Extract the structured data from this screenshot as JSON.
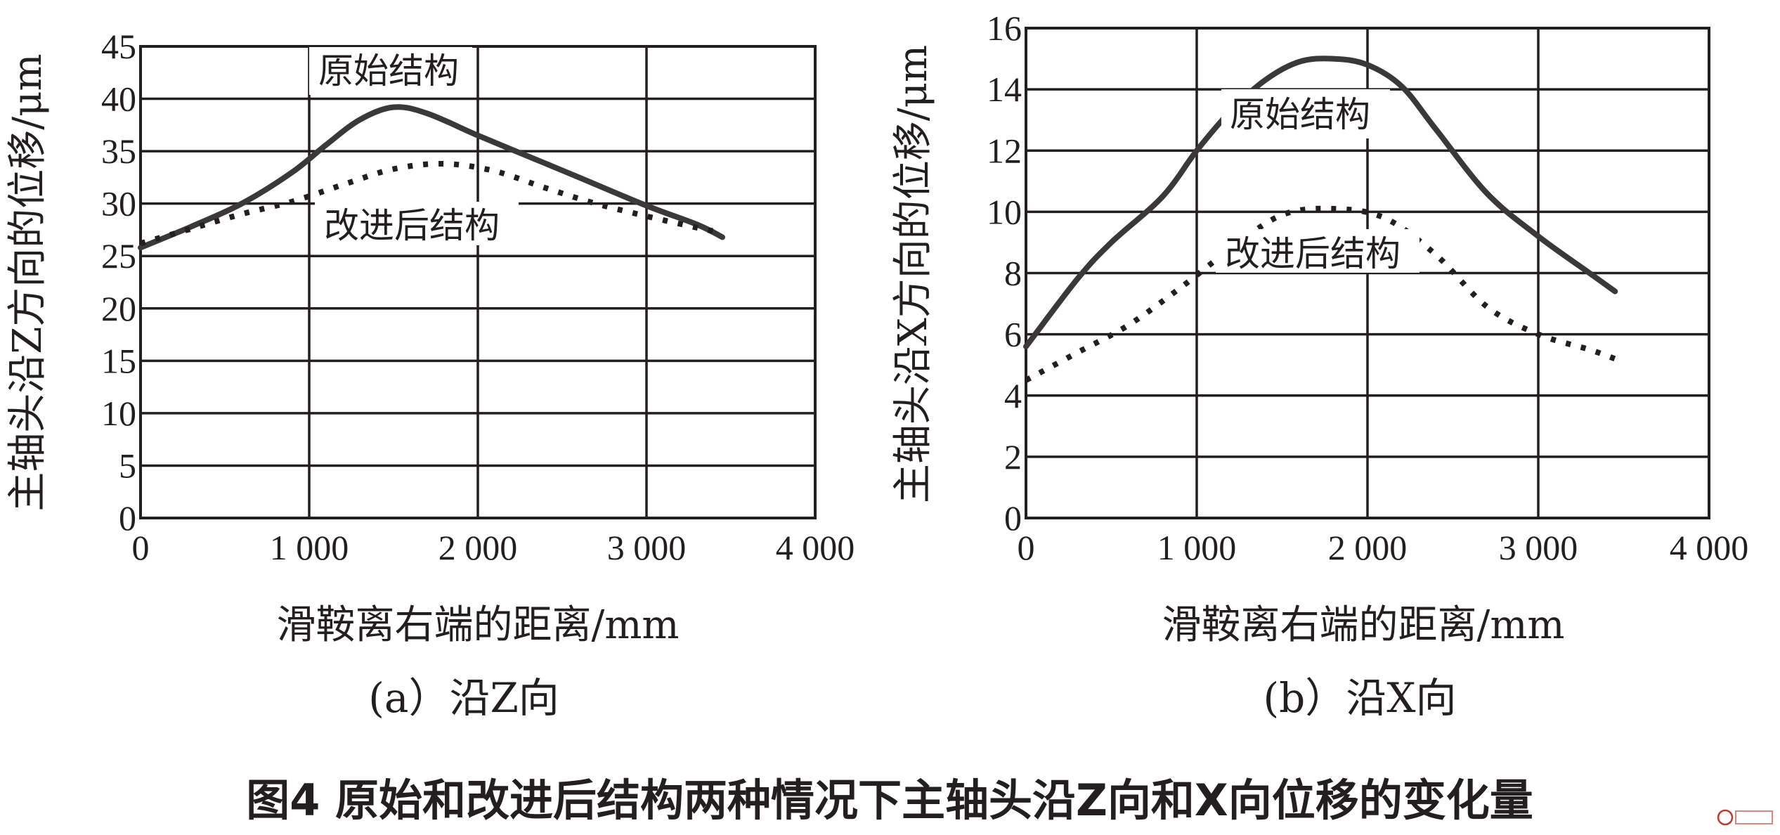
{
  "figure_title": "图4  原始和改进后结构两种情况下主轴头沿Z向和X向位移的变化量",
  "watermark": "",
  "chart_data": [
    {
      "type": "line",
      "caption": "(a）沿Z向",
      "xlabel": "滑鞍离右端的距离/mm",
      "ylabel": "主轴头沿Z方向的位移/μm",
      "xlim": [
        0,
        4000
      ],
      "ylim": [
        0,
        45
      ],
      "xticks": [
        0,
        1000,
        2000,
        3000,
        4000
      ],
      "xtick_labels": [
        "0",
        "1 000",
        "2 000",
        "3 000",
        "4 000"
      ],
      "yticks": [
        0,
        5,
        10,
        15,
        20,
        25,
        30,
        35,
        40,
        45
      ],
      "ytick_labels": [
        "0",
        "5",
        "10",
        "15",
        "20",
        "25",
        "30",
        "35",
        "40",
        "45"
      ],
      "grid": true,
      "series": [
        {
          "name": "原始结构",
          "style": "solid",
          "x": [
            0,
            300,
            600,
            900,
            1100,
            1300,
            1500,
            1700,
            2000,
            2300,
            2600,
            3000,
            3300,
            3450
          ],
          "y": [
            25.8,
            27.8,
            30.0,
            33.0,
            35.6,
            38.0,
            39.2,
            38.6,
            36.5,
            34.5,
            32.5,
            29.8,
            28.0,
            26.8
          ]
        },
        {
          "name": "改进后结构",
          "style": "dotted",
          "x": [
            0,
            300,
            600,
            900,
            1200,
            1500,
            1800,
            2100,
            2400,
            2700,
            3000,
            3300,
            3450
          ],
          "y": [
            26.2,
            27.6,
            29.0,
            30.2,
            31.8,
            33.3,
            33.8,
            33.1,
            31.5,
            30.0,
            28.8,
            27.7,
            27.2
          ]
        }
      ]
    },
    {
      "type": "line",
      "caption": "(b）沿X向",
      "xlabel": "滑鞍离右端的距离/mm",
      "ylabel": "主轴头沿X方向的位移/μm",
      "xlim": [
        0,
        4000
      ],
      "ylim": [
        0,
        16
      ],
      "xticks": [
        0,
        1000,
        2000,
        3000,
        4000
      ],
      "xtick_labels": [
        "0",
        "1 000",
        "2 000",
        "3 000",
        "4 000"
      ],
      "yticks": [
        0,
        2,
        4,
        6,
        8,
        10,
        12,
        14,
        16
      ],
      "ytick_labels": [
        "0",
        "2",
        "4",
        "6",
        "8",
        "10",
        "12",
        "14",
        "16"
      ],
      "grid": true,
      "series": [
        {
          "name": "原始结构",
          "style": "solid",
          "x": [
            0,
            300,
            500,
            800,
            1000,
            1200,
            1400,
            1600,
            1800,
            2000,
            2200,
            2400,
            2700,
            3000,
            3300,
            3450
          ],
          "y": [
            5.6,
            7.8,
            9.0,
            10.5,
            12.0,
            13.3,
            14.3,
            14.9,
            15.0,
            14.8,
            14.1,
            12.7,
            10.6,
            9.2,
            8.0,
            7.4
          ]
        },
        {
          "name": "改进后结构",
          "style": "dotted",
          "x": [
            0,
            300,
            600,
            900,
            1200,
            1500,
            1800,
            2100,
            2400,
            2700,
            3000,
            3300,
            3450
          ],
          "y": [
            4.5,
            5.4,
            6.3,
            7.5,
            8.8,
            9.9,
            10.1,
            9.8,
            8.6,
            6.9,
            6.0,
            5.5,
            5.2
          ]
        }
      ]
    }
  ]
}
